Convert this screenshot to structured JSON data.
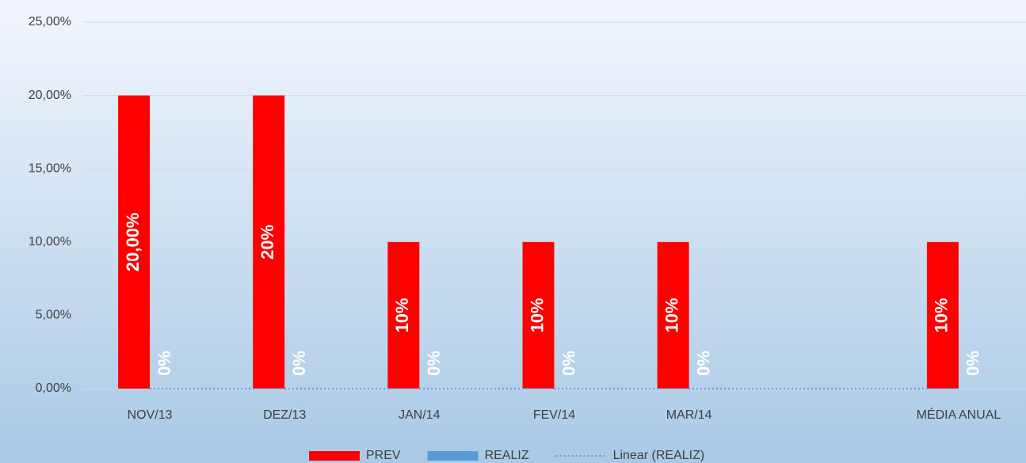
{
  "chart_data": {
    "type": "bar",
    "categories": [
      "NOV/13",
      "DEZ/13",
      "JAN/14",
      "FEV/14",
      "MAR/14",
      null,
      "MÉDIA ANUAL"
    ],
    "series": [
      {
        "name": "PREV",
        "color": "#ff0000",
        "values": [
          20,
          20,
          10,
          10,
          10,
          null,
          10
        ],
        "value_labels": [
          "20,00%",
          "20%",
          "10%",
          "10%",
          "10%",
          null,
          "10%"
        ]
      },
      {
        "name": "REALIZ",
        "color": "#5b9bd5",
        "values": [
          0,
          0,
          0,
          0,
          0,
          null,
          0
        ],
        "value_labels": [
          "0%",
          "0%",
          "0%",
          "0%",
          "0%",
          null,
          "0%"
        ]
      },
      {
        "name": "Linear (REALIZ)",
        "type": "line",
        "color": "#5b9bd5",
        "values": [
          0,
          0,
          0,
          0,
          0,
          0,
          0
        ]
      }
    ],
    "ylim": [
      0,
      25
    ],
    "yticks": [
      {
        "value": 0,
        "label": "0,00%"
      },
      {
        "value": 5,
        "label": "5,00%"
      },
      {
        "value": 10,
        "label": "10,00%"
      },
      {
        "value": 15,
        "label": "15,00%"
      },
      {
        "value": 20,
        "label": "20,00%"
      },
      {
        "value": 25,
        "label": "25,00%"
      }
    ],
    "grid": true,
    "legend": "bottom"
  }
}
